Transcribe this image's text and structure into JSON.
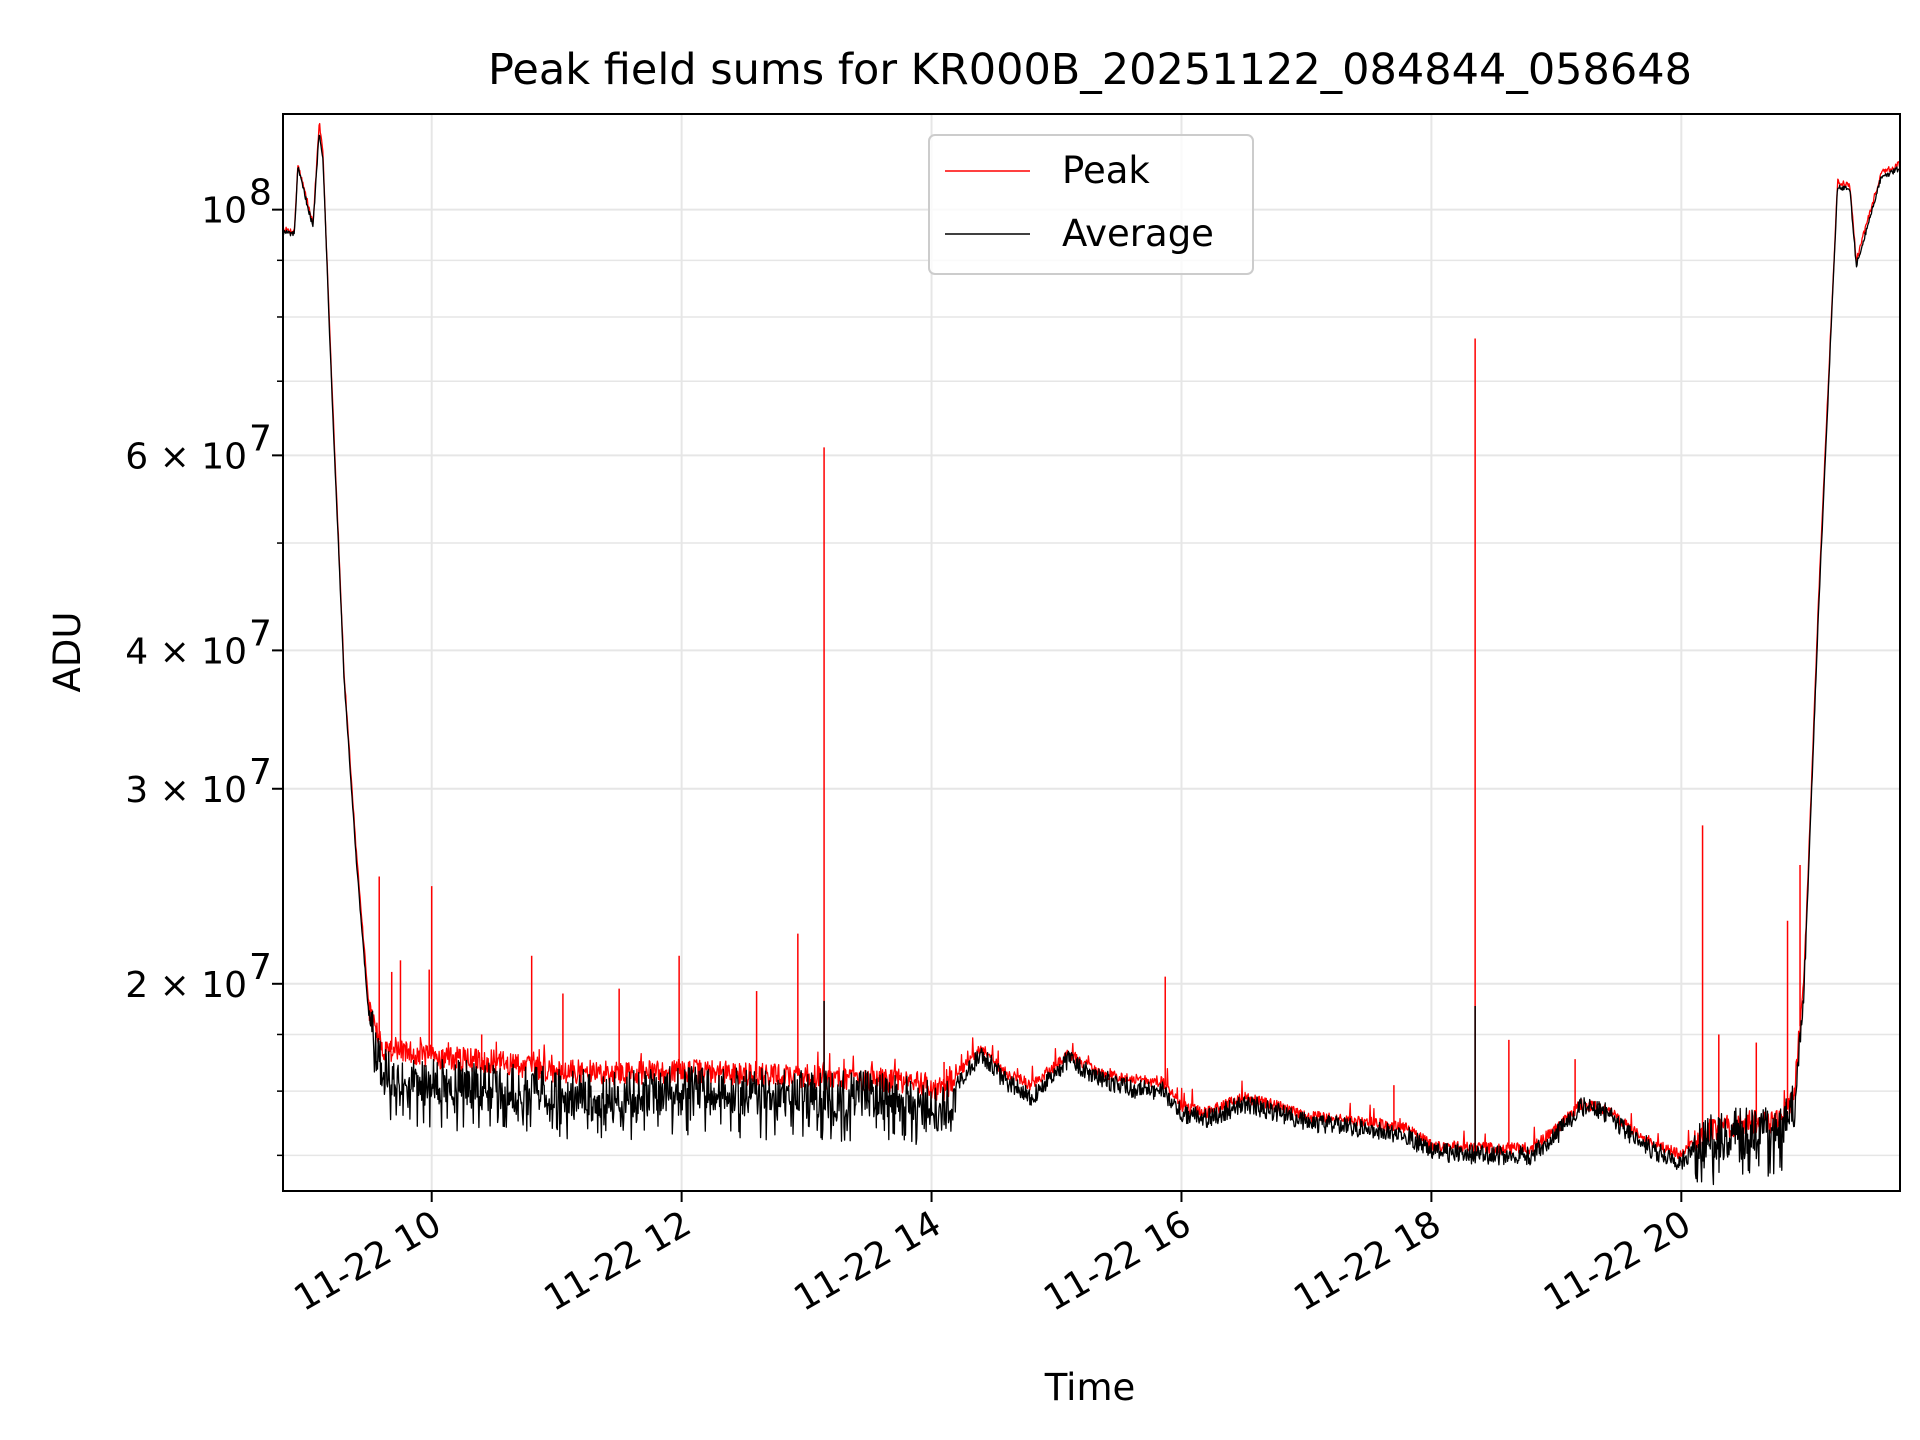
{
  "chart_data": {
    "type": "line",
    "title": "Peak field sums for KR000B_20251122_084844_058648",
    "xlabel": "Time",
    "ylabel": "ADU",
    "yscale": "log",
    "grid": true,
    "legend": {
      "placement": "top-center",
      "entries": [
        "Peak",
        "Average"
      ]
    },
    "xlim_hours": [
      8.81,
      21.75
    ],
    "ylim": [
      13000000,
      122000000
    ],
    "x_ticks": [
      {
        "hour": 10,
        "label": "11-22 10"
      },
      {
        "hour": 12,
        "label": "11-22 12"
      },
      {
        "hour": 14,
        "label": "11-22 14"
      },
      {
        "hour": 16,
        "label": "11-22 16"
      },
      {
        "hour": 18,
        "label": "11-22 18"
      },
      {
        "hour": 20,
        "label": "11-22 20"
      }
    ],
    "y_ticks": [
      {
        "value": 100000000,
        "label": "10",
        "exp": "8",
        "style": "pow"
      },
      {
        "value": 60000000,
        "label": "6 × 10",
        "exp": "7",
        "style": "mant"
      },
      {
        "value": 40000000,
        "label": "4 × 10",
        "exp": "7",
        "style": "mant"
      },
      {
        "value": 30000000,
        "label": "3 × 10",
        "exp": "7",
        "style": "mant"
      },
      {
        "value": 20000000,
        "label": "2 × 10",
        "exp": "7",
        "style": "mant"
      }
    ],
    "y_minor_ticks": [
      14000000,
      16000000,
      18000000,
      50000000,
      70000000,
      80000000,
      90000000
    ],
    "series": [
      {
        "name": "Peak",
        "color": "#ff0000",
        "base": [
          [
            8.81,
            96000000
          ],
          [
            8.9,
            95500000
          ],
          [
            8.93,
            110000000
          ],
          [
            9.05,
            97000000
          ],
          [
            9.1,
            120000000
          ],
          [
            9.13,
            112000000
          ],
          [
            9.2,
            70000000
          ],
          [
            9.3,
            38000000
          ],
          [
            9.4,
            26000000
          ],
          [
            9.5,
            19000000
          ],
          [
            9.6,
            17500000
          ],
          [
            10.0,
            17200000
          ],
          [
            10.5,
            17000000
          ],
          [
            11.0,
            16700000
          ],
          [
            11.5,
            16600000
          ],
          [
            12.0,
            16700000
          ],
          [
            12.5,
            16600000
          ],
          [
            13.0,
            16500000
          ],
          [
            13.5,
            16400000
          ],
          [
            13.9,
            16300000
          ],
          [
            14.1,
            16000000
          ],
          [
            14.25,
            16800000
          ],
          [
            14.4,
            17500000
          ],
          [
            14.6,
            16600000
          ],
          [
            14.8,
            16200000
          ],
          [
            15.0,
            16900000
          ],
          [
            15.1,
            17300000
          ],
          [
            15.3,
            16700000
          ],
          [
            15.6,
            16400000
          ],
          [
            15.85,
            16300000
          ],
          [
            16.0,
            15500000
          ],
          [
            16.2,
            15300000
          ],
          [
            16.5,
            15800000
          ],
          [
            16.7,
            15600000
          ],
          [
            17.0,
            15200000
          ],
          [
            17.5,
            15000000
          ],
          [
            17.8,
            14800000
          ],
          [
            18.0,
            14300000
          ],
          [
            18.5,
            14200000
          ],
          [
            18.8,
            14200000
          ],
          [
            19.0,
            14800000
          ],
          [
            19.2,
            15600000
          ],
          [
            19.4,
            15400000
          ],
          [
            19.6,
            14800000
          ],
          [
            19.8,
            14300000
          ],
          [
            20.0,
            14000000
          ],
          [
            20.2,
            14700000
          ],
          [
            20.5,
            15000000
          ],
          [
            20.8,
            15000000
          ],
          [
            20.9,
            15800000
          ],
          [
            20.98,
            20000000
          ],
          [
            21.1,
            45000000
          ],
          [
            21.25,
            106000000
          ],
          [
            21.35,
            105000000
          ],
          [
            21.4,
            90000000
          ],
          [
            21.6,
            108000000
          ],
          [
            21.75,
            110000000
          ]
        ],
        "spikes": [
          [
            9.58,
            25000000
          ],
          [
            9.68,
            20500000
          ],
          [
            9.75,
            21000000
          ],
          [
            9.98,
            20600000
          ],
          [
            10.0,
            24500000
          ],
          [
            10.4,
            18000000
          ],
          [
            10.8,
            21200000
          ],
          [
            11.05,
            19600000
          ],
          [
            11.5,
            19800000
          ],
          [
            11.98,
            21200000
          ],
          [
            12.6,
            19700000
          ],
          [
            12.93,
            22200000
          ],
          [
            13.14,
            61000000
          ],
          [
            14.1,
            17000000
          ],
          [
            15.87,
            20300000
          ],
          [
            17.7,
            16200000
          ],
          [
            18.35,
            76500000
          ],
          [
            18.62,
            17800000
          ],
          [
            19.15,
            17100000
          ],
          [
            20.17,
            27800000
          ],
          [
            20.3,
            18000000
          ],
          [
            20.6,
            17700000
          ],
          [
            20.85,
            22800000
          ],
          [
            20.95,
            25600000
          ]
        ]
      },
      {
        "name": "Average",
        "color": "#000000",
        "base": [
          [
            8.81,
            95500000
          ],
          [
            8.9,
            95000000
          ],
          [
            8.93,
            109000000
          ],
          [
            9.05,
            96500000
          ],
          [
            9.1,
            118000000
          ],
          [
            9.13,
            111000000
          ],
          [
            9.2,
            69000000
          ],
          [
            9.3,
            37500000
          ],
          [
            9.4,
            25500000
          ],
          [
            9.5,
            18500000
          ],
          [
            9.6,
            16700000
          ],
          [
            10.0,
            16300000
          ],
          [
            10.5,
            16200000
          ],
          [
            11.0,
            16000000
          ],
          [
            11.5,
            15900000
          ],
          [
            12.0,
            16100000
          ],
          [
            12.5,
            16000000
          ],
          [
            13.0,
            15900000
          ],
          [
            13.5,
            15900000
          ],
          [
            13.9,
            15700000
          ],
          [
            14.1,
            15400000
          ],
          [
            14.25,
            16500000
          ],
          [
            14.4,
            17300000
          ],
          [
            14.6,
            16300000
          ],
          [
            14.8,
            15800000
          ],
          [
            15.0,
            16700000
          ],
          [
            15.1,
            17100000
          ],
          [
            15.3,
            16500000
          ],
          [
            15.6,
            16100000
          ],
          [
            15.85,
            16000000
          ],
          [
            16.0,
            15300000
          ],
          [
            16.2,
            15100000
          ],
          [
            16.5,
            15600000
          ],
          [
            16.7,
            15400000
          ],
          [
            17.0,
            15000000
          ],
          [
            17.5,
            14800000
          ],
          [
            17.8,
            14600000
          ],
          [
            18.0,
            14100000
          ],
          [
            18.5,
            14000000
          ],
          [
            18.8,
            14000000
          ],
          [
            19.0,
            14600000
          ],
          [
            19.2,
            15500000
          ],
          [
            19.4,
            15300000
          ],
          [
            19.6,
            14600000
          ],
          [
            19.8,
            14100000
          ],
          [
            20.0,
            13800000
          ],
          [
            20.2,
            14500000
          ],
          [
            20.5,
            14800000
          ],
          [
            20.8,
            14700000
          ],
          [
            20.9,
            15500000
          ],
          [
            20.98,
            19500000
          ],
          [
            21.1,
            44000000
          ],
          [
            21.25,
            105000000
          ],
          [
            21.35,
            104000000
          ],
          [
            21.4,
            89000000
          ],
          [
            21.6,
            107000000
          ],
          [
            21.75,
            109000000
          ]
        ],
        "spikes": [
          [
            13.14,
            19300000
          ],
          [
            18.35,
            19100000
          ]
        ]
      }
    ]
  }
}
